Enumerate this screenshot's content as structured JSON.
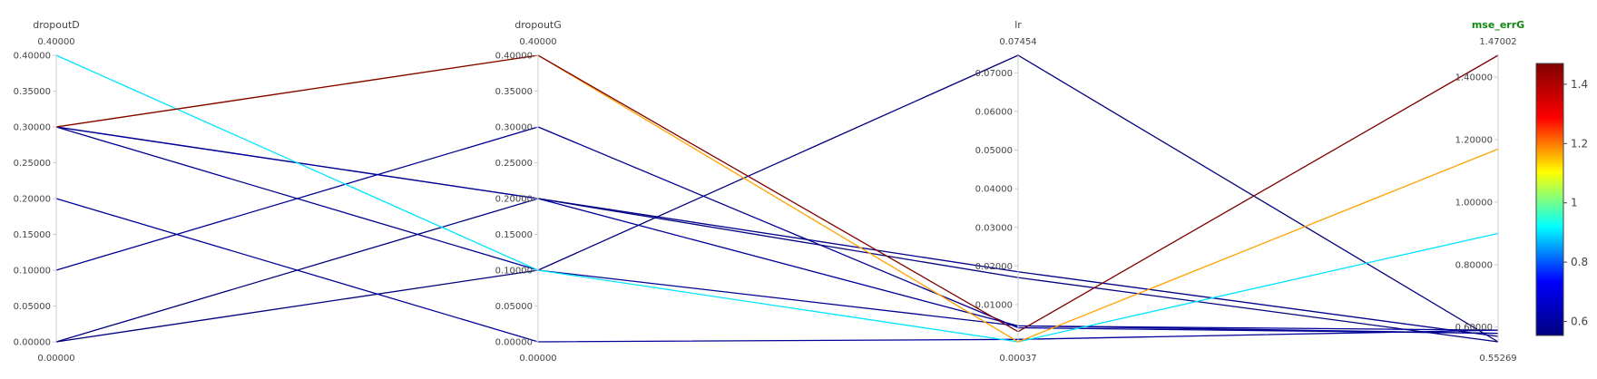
{
  "chart_data": {
    "type": "parallel_coordinates",
    "dimensions": [
      {
        "name": "dropoutD",
        "range": [
          0.0,
          0.4
        ],
        "range_labels": [
          "0.40000",
          "0.00000"
        ],
        "ticks": [
          0.0,
          0.05,
          0.1,
          0.15,
          0.2,
          0.25,
          0.3,
          0.35,
          0.4
        ],
        "tick_labels": [
          "0.00000",
          "0.05000",
          "0.10000",
          "0.15000",
          "0.20000",
          "0.25000",
          "0.30000",
          "0.35000",
          "0.40000"
        ]
      },
      {
        "name": "dropoutG",
        "range": [
          0.0,
          0.4
        ],
        "range_labels": [
          "0.40000",
          "0.00000"
        ],
        "ticks": [
          0.0,
          0.05,
          0.1,
          0.15,
          0.2,
          0.25,
          0.3,
          0.35,
          0.4
        ],
        "tick_labels": [
          "0.00000",
          "0.05000",
          "0.10000",
          "0.15000",
          "0.20000",
          "0.25000",
          "0.30000",
          "0.35000",
          "0.40000"
        ]
      },
      {
        "name": "lr",
        "range": [
          0.00037,
          0.07454
        ],
        "range_labels": [
          "0.07454",
          "0.00037"
        ],
        "ticks": [
          0.01,
          0.02,
          0.03,
          0.04,
          0.05,
          0.06,
          0.07
        ],
        "tick_labels": [
          "0.01000",
          "0.02000",
          "0.03000",
          "0.04000",
          "0.05000",
          "0.06000",
          "0.07000"
        ]
      },
      {
        "name": "mse_errG",
        "range": [
          0.55269,
          1.47002
        ],
        "range_labels": [
          "1.47002",
          "0.55269"
        ],
        "highlight": true,
        "ticks": [
          0.6,
          0.8,
          1.0,
          1.2,
          1.4
        ],
        "tick_labels": [
          "0.60000",
          "0.80000",
          "1.00000",
          "1.20000",
          "1.40000"
        ]
      }
    ],
    "lines": [
      [
        0.3,
        0.4,
        0.003,
        1.47002
      ],
      [
        0.3,
        0.4,
        0.00037,
        1.17
      ],
      [
        0.4,
        0.1,
        0.00037,
        0.9
      ],
      [
        0.3,
        0.2,
        0.0185,
        0.57
      ],
      [
        0.3,
        0.1,
        0.0045,
        0.58
      ],
      [
        0.2,
        0.0,
        0.001,
        0.59
      ],
      [
        0.1,
        0.3,
        0.004,
        0.58
      ],
      [
        0.0,
        0.2,
        0.017,
        0.55269
      ],
      [
        0.0,
        0.1,
        0.07454,
        0.55269
      ],
      [
        0.3,
        0.2,
        0.0045,
        0.59
      ]
    ],
    "colorscale": {
      "name": "jet",
      "stops": [
        "#00007f",
        "#0000ff",
        "#00ffff",
        "#ffff00",
        "#ff0000",
        "#7f0000"
      ],
      "range": [
        0.55269,
        1.47002
      ],
      "ticks": [
        0.6,
        0.8,
        1.0,
        1.2,
        1.4
      ],
      "tick_labels": [
        "0.6",
        "0.8",
        "1",
        "1.2",
        "1.4"
      ]
    }
  }
}
